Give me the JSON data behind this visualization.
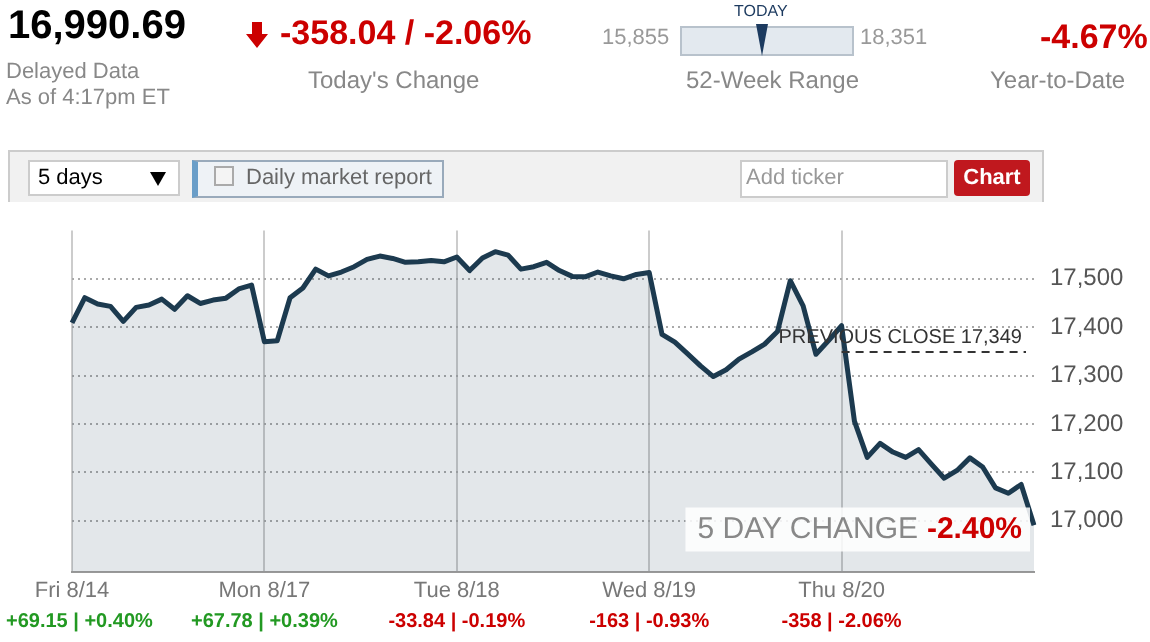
{
  "chart_data": {
    "type": "area",
    "annotations": [
      "16,990.69",
      "Delayed Data",
      "As of 4:17pm ET",
      "-358.04 / -2.06%",
      "Today's Change",
      "15,855",
      "TODAY",
      "18,351",
      "52-Week Range",
      "-4.67%",
      "Year-to-Date",
      "5 days",
      "Daily market report",
      "Add ticker",
      "Chart",
      "5 DAY CHANGE -2.40%",
      "+69.15 | +0.40%",
      "+67.78 | +0.39%",
      "-33.84 | -0.19%",
      "-163 | -0.93%",
      "-358 | -2.06%"
    ],
    "categories": [
      "Fri 8/14",
      null,
      null,
      null,
      null,
      null,
      null,
      null,
      null,
      null,
      null,
      null,
      null,
      null,
      null,
      "Mon 8/17",
      null,
      null,
      null,
      null,
      null,
      null,
      null,
      null,
      null,
      null,
      null,
      null,
      null,
      null,
      "Tue 8/18",
      null,
      null,
      null,
      null,
      null,
      null,
      null,
      null,
      null,
      null,
      null,
      null,
      null,
      null,
      "Wed 8/19",
      null,
      null,
      null,
      null,
      null,
      null,
      null,
      null,
      null,
      null,
      null,
      null,
      null,
      null,
      "Thu 8/20",
      null,
      null,
      null,
      null,
      null,
      null,
      null,
      null,
      null,
      null,
      null,
      null,
      null,
      null,
      null
    ],
    "series": [
      {
        "color": "#1c3a4f",
        "values": [
          17409,
          17461,
          17448,
          17443,
          17412,
          17441,
          17446,
          17458,
          17437,
          17465,
          17449,
          17456,
          17460,
          17479,
          17487,
          17370,
          17372,
          17461,
          17481,
          17520,
          17506,
          17514,
          17525,
          17540,
          17547,
          17542,
          17534,
          17535,
          17538,
          17535,
          17545,
          17517,
          17543,
          17556,
          17549,
          17520,
          17525,
          17534,
          17517,
          17505,
          17504,
          17514,
          17506,
          17500,
          17509,
          17513,
          17385,
          17369,
          17345,
          17320,
          17298,
          17312,
          17334,
          17349,
          17365,
          17391,
          17496,
          17444,
          17344,
          17373,
          17403,
          17206,
          17131,
          17160,
          17142,
          17131,
          17147,
          17117,
          17088,
          17104,
          17130,
          17111,
          17068,
          17057,
          17075,
          16991
        ]
      }
    ],
    "ylim": [
      16895,
      17600
    ],
    "yticks": [
      {
        "value": 17000,
        "label": "17,000"
      },
      {
        "value": 17100,
        "label": "17,100"
      },
      {
        "value": 17200,
        "label": "17,200"
      },
      {
        "value": 17300,
        "label": "17,300"
      },
      {
        "value": 17400,
        "label": "17,400"
      },
      {
        "value": 17500,
        "label": "17,500"
      }
    ],
    "ref_lines": [
      {
        "axis": "y",
        "value": 17349,
        "label": "PREVIOUS CLOSE 17,349",
        "line_style": "dashed",
        "color": "#333333"
      }
    ],
    "grid": true
  }
}
